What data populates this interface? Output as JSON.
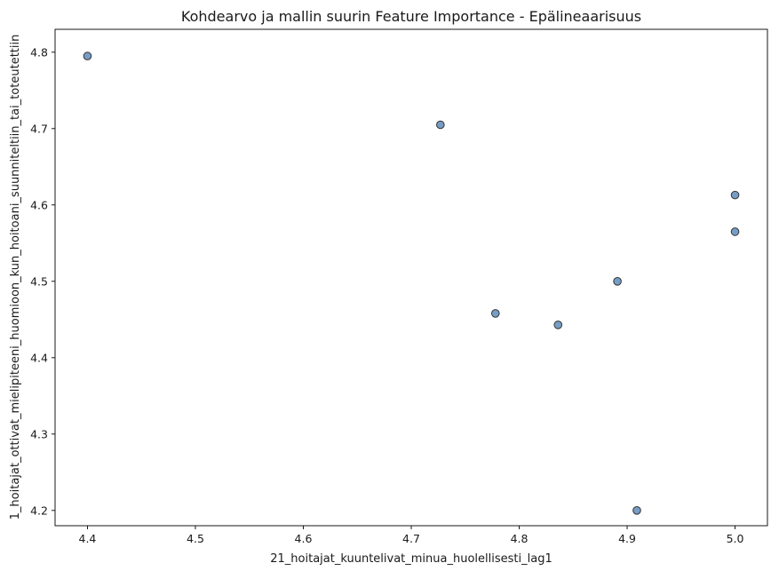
{
  "chart_data": {
    "type": "scatter",
    "title": "Kohdearvo ja mallin suurin Feature Importance - Epälineaarisuus",
    "xlabel": "21_hoitajat_kuuntelivat_minua_huolellisesti_lag1",
    "ylabel": "1_hoitajat_ottivat_mielipiteeni_huomioon_kun_hoitoani_suunniteltiin_tai_toteutettiin",
    "xlim": [
      4.37,
      5.03
    ],
    "ylim": [
      4.18,
      4.83
    ],
    "xticks": [
      "4.4",
      "4.5",
      "4.6",
      "4.7",
      "4.8",
      "4.9",
      "5.0"
    ],
    "yticks": [
      "4.2",
      "4.3",
      "4.4",
      "4.5",
      "4.6",
      "4.7",
      "4.8"
    ],
    "grid": false,
    "marker_color": "#6f98c2",
    "marker_edge_color": "#333333",
    "points": [
      {
        "x": 4.4,
        "y": 4.795
      },
      {
        "x": 4.727,
        "y": 4.705
      },
      {
        "x": 4.778,
        "y": 4.458
      },
      {
        "x": 4.836,
        "y": 4.443
      },
      {
        "x": 4.891,
        "y": 4.5
      },
      {
        "x": 4.909,
        "y": 4.2
      },
      {
        "x": 5.0,
        "y": 4.613
      },
      {
        "x": 5.0,
        "y": 4.565
      }
    ]
  }
}
